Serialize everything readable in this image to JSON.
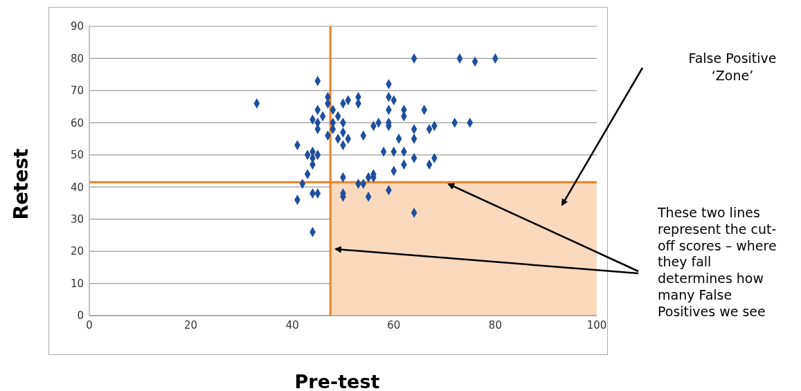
{
  "chart_data": {
    "type": "scatter",
    "xlabel": "Pre-test",
    "ylabel": "Retest",
    "xlim": [
      0,
      100
    ],
    "xticks": [
      0,
      20,
      40,
      60,
      80,
      100
    ],
    "ylim": [
      0,
      90
    ],
    "yticks": [
      0,
      10,
      20,
      30,
      40,
      50,
      60,
      70,
      80,
      90
    ],
    "grid": "y",
    "marker": "diamond",
    "x": [
      33,
      45,
      41,
      42,
      41,
      44,
      45,
      44,
      43,
      44,
      43,
      44,
      45,
      44,
      44,
      45,
      45,
      46,
      45,
      47,
      47,
      48,
      48,
      47,
      49,
      48,
      50,
      51,
      49,
      50,
      50,
      50,
      51,
      53,
      53,
      54,
      50,
      50,
      50,
      53,
      54,
      55,
      55,
      56,
      56,
      56,
      57,
      58,
      59,
      59,
      59,
      59,
      59,
      60,
      60,
      61,
      62,
      62,
      62,
      62,
      60,
      59,
      64,
      64,
      64,
      64,
      66,
      67,
      67,
      68,
      68,
      72,
      75,
      64,
      73,
      76,
      80
    ],
    "series": [
      {
        "color": "#1f4e9c",
        "values": [
          66,
          73,
          53,
          41,
          36,
          38,
          38,
          26,
          44,
          47,
          50,
          51,
          50,
          49,
          61,
          60,
          64,
          62,
          58,
          66,
          68,
          64,
          60,
          56,
          55,
          58,
          66,
          67,
          62,
          60,
          57,
          53,
          55,
          66,
          68,
          56,
          43,
          37,
          38,
          41,
          41,
          43,
          37,
          44,
          43,
          59,
          60,
          51,
          60,
          59,
          64,
          68,
          72,
          67,
          51,
          55,
          51,
          47,
          62,
          64,
          45,
          39,
          58,
          55,
          49,
          32,
          64,
          58,
          47,
          59,
          49,
          60,
          60,
          80,
          80,
          79,
          80
        ]
      }
    ],
    "ref_lines": [
      {
        "axis": "x",
        "value": 47.5,
        "color": "#f07f22"
      },
      {
        "axis": "y",
        "value": 41.5,
        "color": "#f07f22"
      }
    ],
    "bands": [
      {
        "axis": "x",
        "from": 47.5,
        "to": 100,
        "color": "#fad9bd"
      }
    ],
    "annotations": [
      "False Positive ‘Zone’",
      "These two lines represent the cut-off scores – where they fall determines how many False Positives we see"
    ]
  }
}
